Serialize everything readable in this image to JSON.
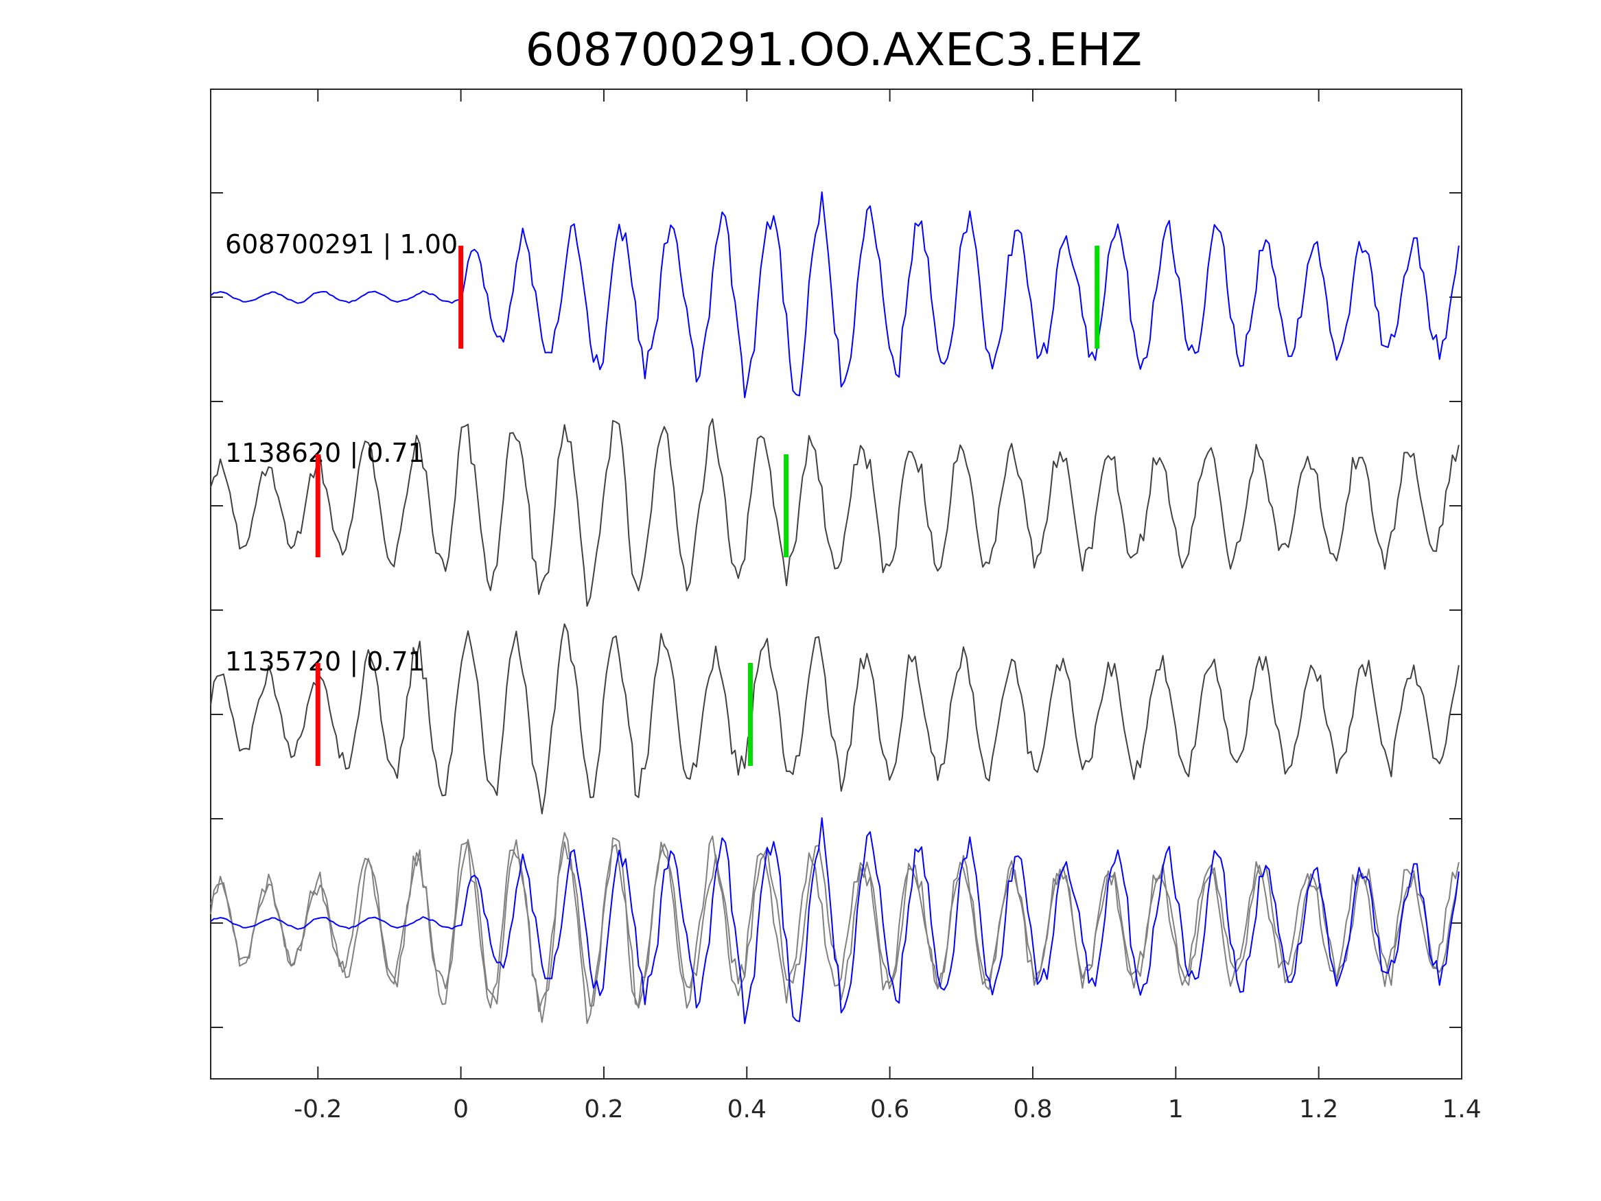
{
  "chart_data": {
    "type": "line",
    "title": "608700291.OO.AXEC3.EHZ",
    "xlabel": "",
    "ylabel": "",
    "xlim": [
      -0.35,
      1.4
    ],
    "xticks": [
      -0.2,
      0,
      0.2,
      0.4,
      0.6,
      0.8,
      1,
      1.2,
      1.4
    ],
    "xtick_labels": [
      "-0.2",
      "0",
      "0.2",
      "0.4",
      "0.6",
      "0.8",
      "1",
      "1.2",
      "1.4"
    ],
    "y_tick_count": 9,
    "grid": false,
    "legend": "none",
    "colors": {
      "master": "#0000ff",
      "neighbor": "#404040",
      "overlay_neighbor": "#808080",
      "p_pick": "#ff0000",
      "s_pick": "#00dd00"
    },
    "series": [
      {
        "label": "608700291 | 1.00",
        "color": "#0000ff",
        "offset": 0,
        "p_pick": 0.0,
        "s_pick": 0.89
      },
      {
        "label": "1138620 | 0.71",
        "color": "#404040",
        "offset": 1,
        "p_pick": -0.2,
        "s_pick": 0.455
      },
      {
        "label": "1135720 | 0.71",
        "color": "#404040",
        "offset": 2,
        "p_pick": -0.2,
        "s_pick": 0.405
      }
    ],
    "overlay": {
      "offset": 3,
      "note_series": [
        "608700291 | 1.00",
        "1138620 | 0.71",
        "1135720 | 0.71"
      ]
    }
  }
}
